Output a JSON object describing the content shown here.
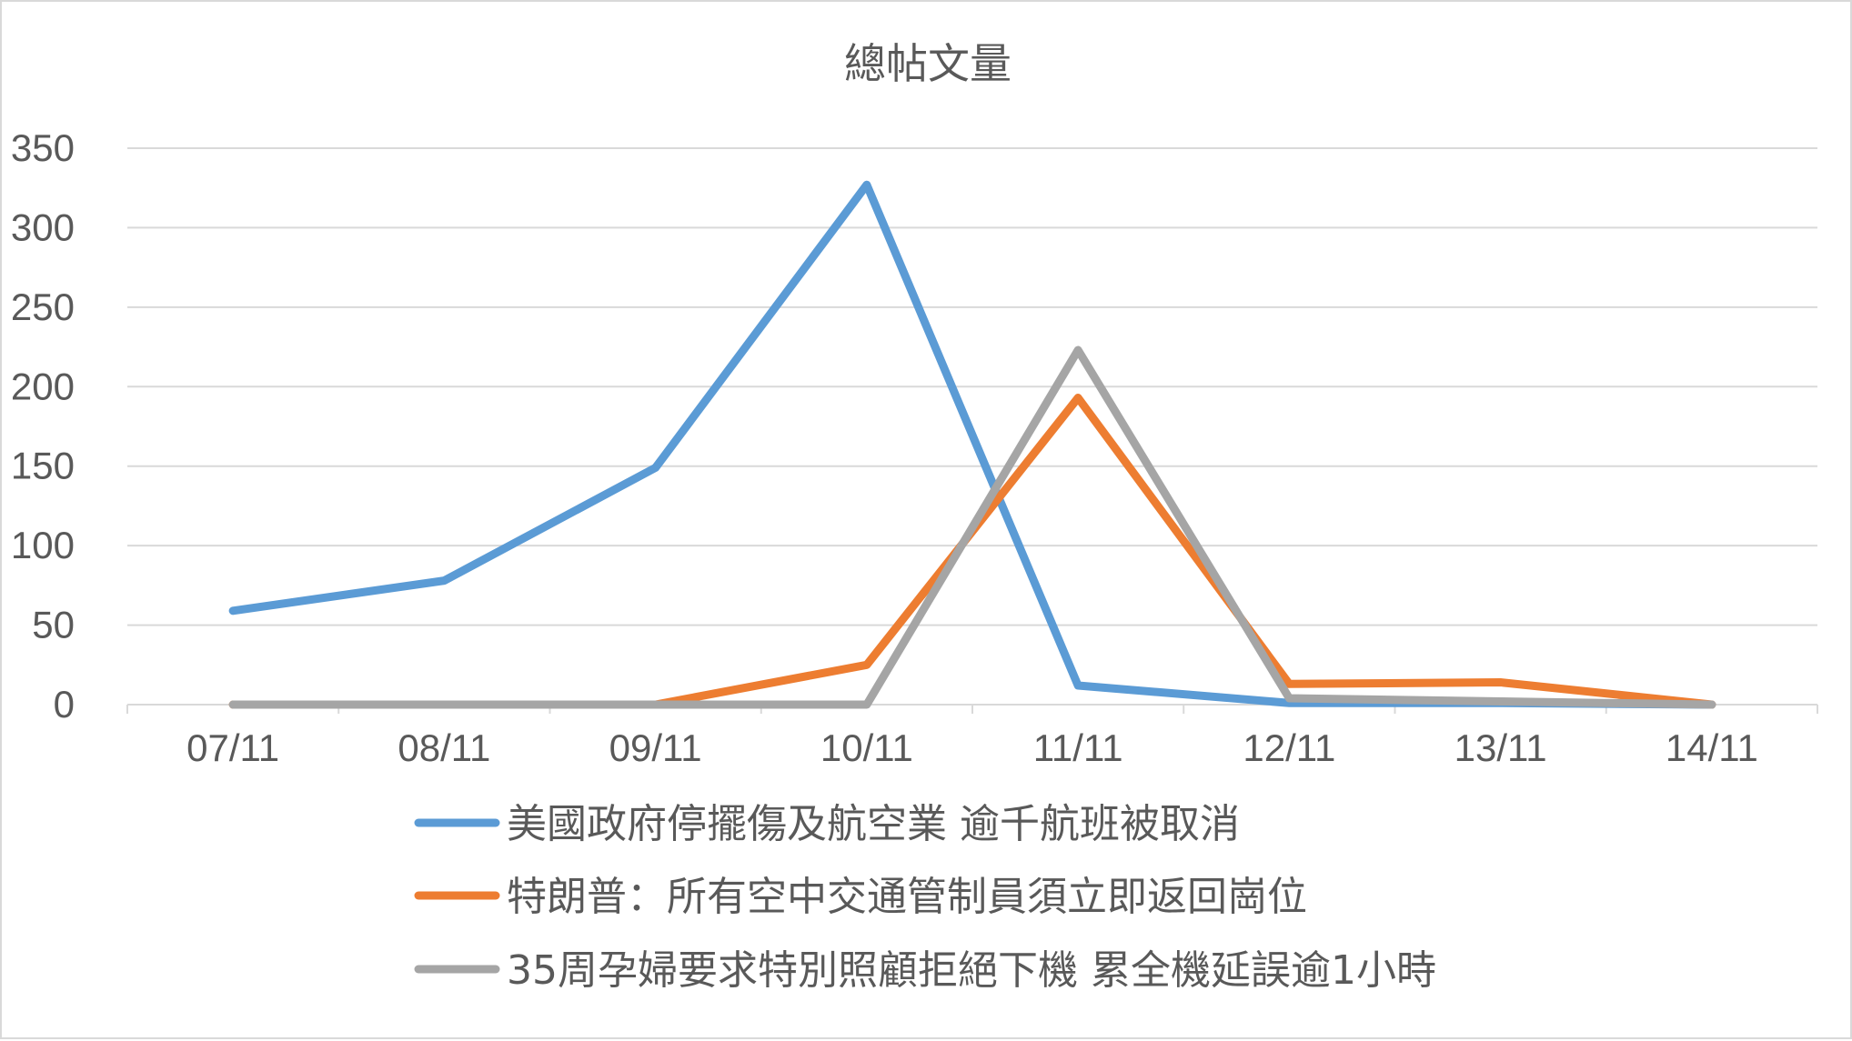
{
  "chart_data": {
    "type": "line",
    "title": "總帖文量",
    "xlabel": "",
    "ylabel": "",
    "categories": [
      "07/11",
      "08/11",
      "09/11",
      "10/11",
      "11/11",
      "12/11",
      "13/11",
      "14/11"
    ],
    "ylim": [
      0,
      350
    ],
    "yticks": [
      0,
      50,
      100,
      150,
      200,
      250,
      300,
      350
    ],
    "grid": true,
    "legend_position": "bottom",
    "series": [
      {
        "name": "美國政府停擺傷及航空業 逾千航班被取消",
        "color": "#5b9bd5",
        "values": [
          59,
          78,
          149,
          327,
          12,
          1,
          1,
          0
        ]
      },
      {
        "name": "特朗普：所有空中交通管制員須立即返回崗位",
        "color": "#ed7d31",
        "values": [
          0,
          0,
          0,
          25,
          193,
          13,
          14,
          0
        ]
      },
      {
        "name": "35周孕婦要求特別照顧拒絕下機 累全機延誤逾1小時",
        "color": "#a5a5a5",
        "values": [
          0,
          0,
          0,
          0,
          223,
          4,
          2,
          0
        ]
      }
    ]
  }
}
